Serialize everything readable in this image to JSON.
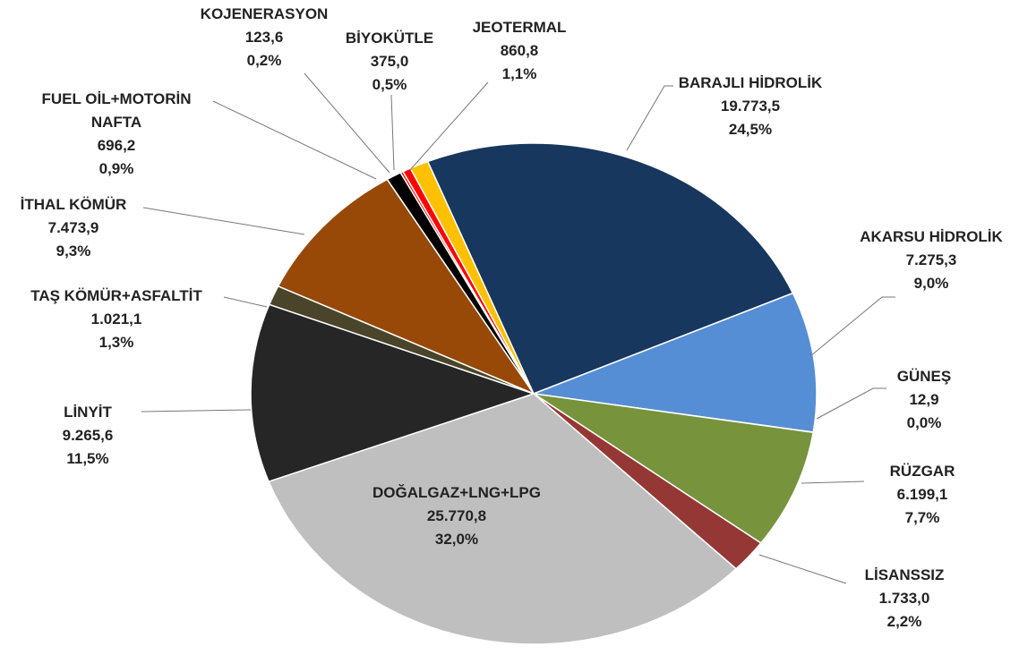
{
  "chart_data": {
    "type": "pie",
    "categories": [
      "BARAJLI HİDROLİK",
      "AKARSU HİDROLİK",
      "GÜNEŞ",
      "RÜZGAR",
      "LİSANSSIZ",
      "DOĞALGAZ+LNG+LPG",
      "LİNYİT",
      "TAŞ KÖMÜR+ASFALTİT",
      "İTHAL KÖMÜR",
      "FUEL OİL+MOTORİN\nNAFTA",
      "KOJENERASYON",
      "BİYOKÜTLE",
      "JEOTERMAL"
    ],
    "values": [
      19773.5,
      7275.3,
      12.9,
      6199.1,
      1733.0,
      25770.8,
      9265.6,
      1021.1,
      7473.9,
      696.2,
      123.6,
      375.0,
      860.8
    ],
    "value_labels": [
      "19.773,5",
      "7.275,3",
      "12,9",
      "6.199,1",
      "1.733,0",
      "25.770,8",
      "9.265,6",
      "1.021,1",
      "7.473,9",
      "696,2",
      "123,6",
      "375,0",
      "860,8"
    ],
    "percent_labels": [
      "24,5%",
      "9,0%",
      "0,0%",
      "7,7%",
      "2,2%",
      "32,0%",
      "11,5%",
      "1,3%",
      "9,3%",
      "0,9%",
      "0,2%",
      "0,5%",
      "1,1%"
    ],
    "colors": [
      "#17375e",
      "#558ed5",
      "#ffff00",
      "#77933c",
      "#953735",
      "#bfbfbf",
      "#262626",
      "#4a452a",
      "#984807",
      "#000000",
      "#ff0000",
      "#ff0000",
      "#ffc000"
    ]
  }
}
